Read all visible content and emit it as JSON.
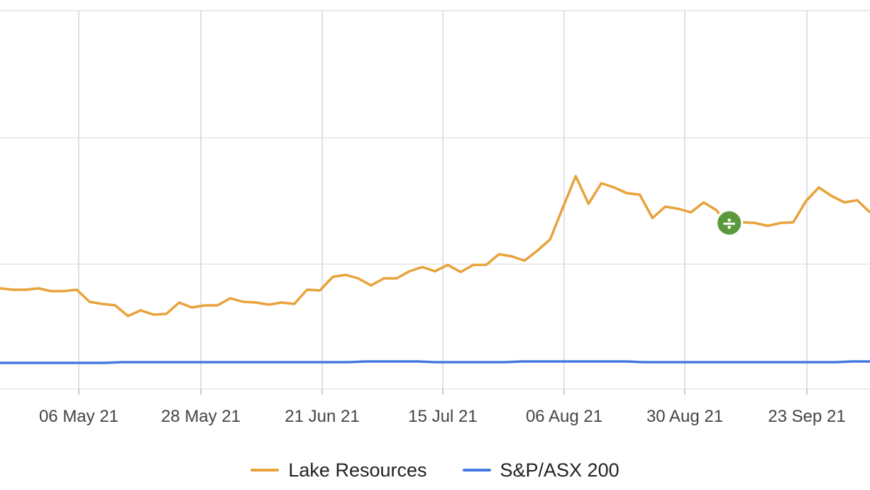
{
  "chart_data": {
    "type": "line",
    "x_tick_labels": [
      "06 May 21",
      "28 May 21",
      "21 Jun 21",
      "15 Jul 21",
      "06 Aug 21",
      "30 Aug 21",
      "23 Sep 21"
    ],
    "grid": true,
    "legend_position": "bottom",
    "series": [
      {
        "name": "Lake Resources",
        "color": "#e8a23a",
        "values": [
          406,
          408,
          408,
          406,
          410,
          410,
          408,
          425,
          428,
          430,
          445,
          437,
          443,
          442,
          426,
          433,
          430,
          430,
          420,
          425,
          426,
          429,
          426,
          428,
          408,
          409,
          390,
          387,
          392,
          402,
          392,
          392,
          382,
          376,
          382,
          373,
          383,
          373,
          373,
          358,
          361,
          367,
          353,
          337,
          292,
          248,
          287,
          258,
          264,
          272,
          274,
          307,
          291,
          294,
          299,
          285,
          296,
          320,
          313,
          314,
          318,
          314,
          313,
          283,
          264,
          276,
          285,
          282,
          299
        ],
        "marker": {
          "index": 57,
          "glyph": "÷",
          "color": "#5a9a3c"
        }
      },
      {
        "name": "S&P/ASX 200",
        "color": "#4479e0",
        "values": [
          511,
          511,
          511,
          511,
          511,
          511,
          511,
          510,
          510,
          510,
          510,
          510,
          510,
          510,
          510,
          510,
          510,
          510,
          510,
          510,
          510,
          509,
          509,
          509,
          509,
          510,
          510,
          510,
          510,
          510,
          509,
          509,
          509,
          509,
          509,
          509,
          509,
          510,
          510,
          510,
          510,
          510,
          510,
          510,
          510,
          510,
          510,
          510,
          510,
          509,
          509
        ]
      }
    ]
  },
  "legend": [
    {
      "label": "Lake Resources",
      "color": "#e8a23a"
    },
    {
      "label": "S&P/ASX 200",
      "color": "#4479e0"
    }
  ]
}
